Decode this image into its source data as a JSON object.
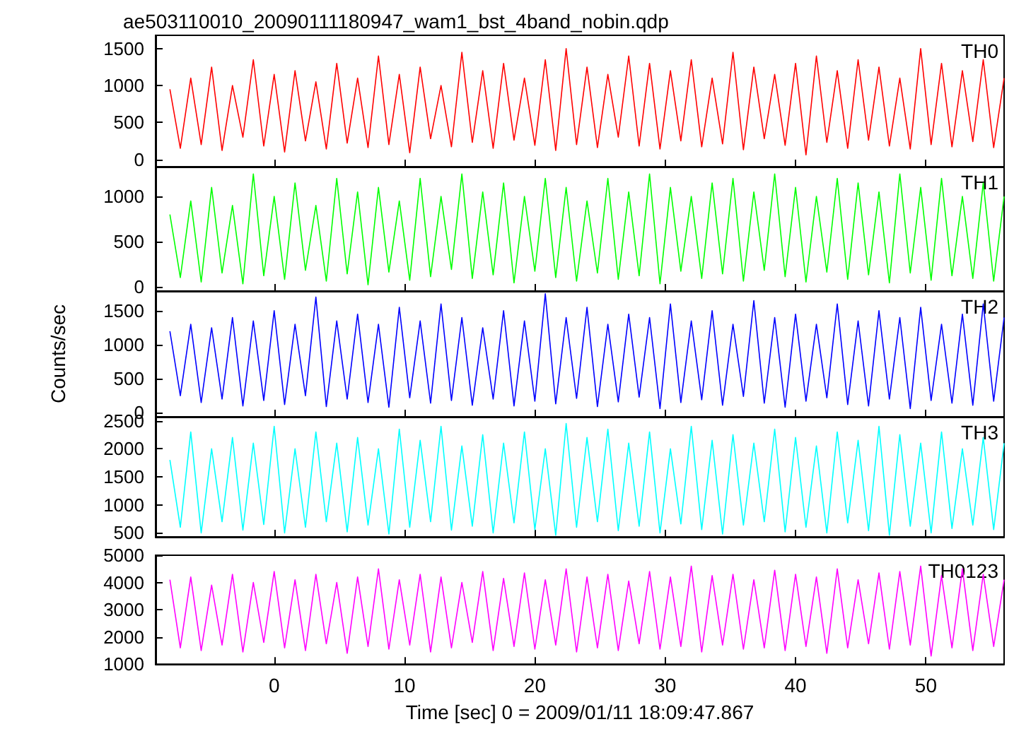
{
  "chart_data": [
    {
      "type": "line",
      "title": "ae503110010_20090111180947_wam1_bst_4band_nobin.qdp",
      "annotations": [
        "TH0"
      ],
      "tick_labels": "y",
      "grid": false,
      "marker": "none",
      "line_style": "solid",
      "x": [
        -8,
        -7.2,
        -6.4,
        -5.6,
        -4.8,
        -4,
        -3.2,
        -2.4,
        -1.6,
        -0.8,
        0,
        0.8,
        1.6,
        2.4,
        3.2,
        4,
        4.8,
        5.6,
        6.4,
        7.2,
        8,
        8.8,
        9.6,
        10.4,
        11.2,
        12,
        12.8,
        13.6,
        14.4,
        15.2,
        16,
        16.8,
        17.6,
        18.4,
        19.2,
        20,
        20.8,
        21.6,
        22.4,
        23.2,
        24,
        24.8,
        25.6,
        26.4,
        27.2,
        28,
        28.8,
        29.6,
        30.4,
        31.2,
        32,
        32.8,
        33.6,
        34.4,
        35.2,
        36,
        36.8,
        37.6,
        38.4,
        39.2,
        40,
        40.8,
        41.6,
        42.4,
        43.2,
        44,
        44.8,
        45.6,
        46.4,
        47.2,
        48,
        48.8,
        49.6,
        50.4,
        51.2,
        52,
        52.8,
        53.6,
        54.4,
        55.2,
        56
      ],
      "series": [
        {
          "color": "#ff0000",
          "values": [
            950,
            150,
            1100,
            200,
            1250,
            120,
            1000,
            300,
            1350,
            180,
            1150,
            100,
            1200,
            250,
            1050,
            140,
            1300,
            220,
            1100,
            160,
            1400,
            200,
            1150,
            90,
            1250,
            280,
            1000,
            170,
            1450,
            230,
            1200,
            150,
            1300,
            260,
            1100,
            190,
            1350,
            120,
            1500,
            200,
            1250,
            160,
            1150,
            300,
            1400,
            180,
            1300,
            140,
            1200,
            250,
            1350,
            170,
            1100,
            210,
            1450,
            130,
            1250,
            280,
            1150,
            190,
            1300,
            60,
            1400,
            230,
            1200,
            150,
            1350,
            260,
            1250,
            180,
            1100,
            140,
            1500,
            200,
            1300,
            170,
            1200,
            240,
            1350,
            160,
            1100
          ]
        }
      ],
      "xlim": [
        -9.1,
        56
      ],
      "xticks": [
        0,
        10,
        20,
        30,
        40,
        50
      ],
      "ylim": [
        -100,
        1680
      ],
      "yticks": [
        0,
        500,
        1000,
        1500
      ]
    },
    {
      "type": "line",
      "annotations": [
        "TH1"
      ],
      "tick_labels": "y",
      "grid": false,
      "marker": "none",
      "line_style": "solid",
      "x": [
        -8,
        -7.2,
        -6.4,
        -5.6,
        -4.8,
        -4,
        -3.2,
        -2.4,
        -1.6,
        -0.8,
        0,
        0.8,
        1.6,
        2.4,
        3.2,
        4,
        4.8,
        5.6,
        6.4,
        7.2,
        8,
        8.8,
        9.6,
        10.4,
        11.2,
        12,
        12.8,
        13.6,
        14.4,
        15.2,
        16,
        16.8,
        17.6,
        18.4,
        19.2,
        20,
        20.8,
        21.6,
        22.4,
        23.2,
        24,
        24.8,
        25.6,
        26.4,
        27.2,
        28,
        28.8,
        29.6,
        30.4,
        31.2,
        32,
        32.8,
        33.6,
        34.4,
        35.2,
        36,
        36.8,
        37.6,
        38.4,
        39.2,
        40,
        40.8,
        41.6,
        42.4,
        43.2,
        44,
        44.8,
        45.6,
        46.4,
        47.2,
        48,
        48.8,
        49.6,
        50.4,
        51.2,
        52,
        52.8,
        53.6,
        54.4,
        55.2,
        56
      ],
      "series": [
        {
          "color": "#00ff00",
          "values": [
            800,
            100,
            950,
            50,
            1100,
            150,
            900,
            30,
            1250,
            120,
            1000,
            80,
            1150,
            180,
            900,
            60,
            1200,
            140,
            1050,
            20,
            1100,
            160,
            950,
            70,
            1200,
            110,
            1000,
            190,
            1250,
            90,
            1050,
            130,
            1150,
            40,
            1000,
            170,
            1200,
            100,
            1100,
            60,
            950,
            150,
            1200,
            80,
            1050,
            120,
            1250,
            30,
            1100,
            170,
            1000,
            90,
            1150,
            140,
            1200,
            60,
            1050,
            180,
            1250,
            110,
            1100,
            50,
            1000,
            160,
            1200,
            80,
            1150,
            130,
            1050,
            40,
            1250,
            150,
            1100,
            70,
            1200,
            120,
            1000,
            90,
            1150,
            60,
            1000
          ]
        }
      ],
      "xlim": [
        -9.1,
        56
      ],
      "xticks": [
        0,
        10,
        20,
        30,
        40,
        50
      ],
      "ylim": [
        -50,
        1330
      ],
      "yticks": [
        0,
        500,
        1000
      ]
    },
    {
      "type": "line",
      "annotations": [
        "TH2"
      ],
      "ylabel": "Counts/sec",
      "tick_labels": "y",
      "grid": false,
      "marker": "none",
      "line_style": "solid",
      "x": [
        -8,
        -7.2,
        -6.4,
        -5.6,
        -4.8,
        -4,
        -3.2,
        -2.4,
        -1.6,
        -0.8,
        0,
        0.8,
        1.6,
        2.4,
        3.2,
        4,
        4.8,
        5.6,
        6.4,
        7.2,
        8,
        8.8,
        9.6,
        10.4,
        11.2,
        12,
        12.8,
        13.6,
        14.4,
        15.2,
        16,
        16.8,
        17.6,
        18.4,
        19.2,
        20,
        20.8,
        21.6,
        22.4,
        23.2,
        24,
        24.8,
        25.6,
        26.4,
        27.2,
        28,
        28.8,
        29.6,
        30.4,
        31.2,
        32,
        32.8,
        33.6,
        34.4,
        35.2,
        36,
        36.8,
        37.6,
        38.4,
        39.2,
        40,
        40.8,
        41.6,
        42.4,
        43.2,
        44,
        44.8,
        45.6,
        46.4,
        47.2,
        48,
        48.8,
        49.6,
        50.4,
        51.2,
        52,
        52.8,
        53.6,
        54.4,
        55.2,
        56
      ],
      "series": [
        {
          "color": "#0000ff",
          "values": [
            1200,
            250,
            1300,
            150,
            1250,
            200,
            1400,
            100,
            1350,
            180,
            1500,
            120,
            1300,
            250,
            1700,
            90,
            1350,
            200,
            1450,
            150,
            1300,
            80,
            1550,
            220,
            1350,
            140,
            1600,
            180,
            1400,
            110,
            1250,
            200,
            1500,
            100,
            1350,
            170,
            1750,
            130,
            1400,
            210,
            1550,
            90,
            1300,
            160,
            1450,
            230,
            1400,
            60,
            1600,
            150,
            1350,
            190,
            1500,
            110,
            1300,
            240,
            1650,
            140,
            1400,
            80,
            1450,
            170,
            1300,
            220,
            1600,
            120,
            1350,
            100,
            1500,
            200,
            1400,
            60,
            1550,
            180,
            1300,
            140,
            1450,
            110,
            1600,
            170,
            1400
          ]
        }
      ],
      "xlim": [
        -9.1,
        56
      ],
      "xticks": [
        0,
        10,
        20,
        30,
        40,
        50
      ],
      "ylim": [
        -60,
        1790
      ],
      "yticks": [
        0,
        500,
        1000,
        1500
      ]
    },
    {
      "type": "line",
      "annotations": [
        "TH3"
      ],
      "tick_labels": "y",
      "grid": false,
      "marker": "none",
      "line_style": "solid",
      "x": [
        -8,
        -7.2,
        -6.4,
        -5.6,
        -4.8,
        -4,
        -3.2,
        -2.4,
        -1.6,
        -0.8,
        0,
        0.8,
        1.6,
        2.4,
        3.2,
        4,
        4.8,
        5.6,
        6.4,
        7.2,
        8,
        8.8,
        9.6,
        10.4,
        11.2,
        12,
        12.8,
        13.6,
        14.4,
        15.2,
        16,
        16.8,
        17.6,
        18.4,
        19.2,
        20,
        20.8,
        21.6,
        22.4,
        23.2,
        24,
        24.8,
        25.6,
        26.4,
        27.2,
        28,
        28.8,
        29.6,
        30.4,
        31.2,
        32,
        32.8,
        33.6,
        34.4,
        35.2,
        36,
        36.8,
        37.6,
        38.4,
        39.2,
        40,
        40.8,
        41.6,
        42.4,
        43.2,
        44,
        44.8,
        45.6,
        46.4,
        47.2,
        48,
        48.8,
        49.6,
        50.4,
        51.2,
        52,
        52.8,
        53.6,
        54.4,
        55.2,
        56
      ],
      "series": [
        {
          "color": "#00ffff",
          "values": [
            1800,
            600,
            2300,
            500,
            2000,
            700,
            2200,
            550,
            2100,
            650,
            2400,
            500,
            2000,
            600,
            2300,
            700,
            2100,
            520,
            2200,
            640,
            2000,
            480,
            2350,
            600,
            2150,
            700,
            2400,
            550,
            2050,
            620,
            2250,
            500,
            2100,
            680,
            2300,
            560,
            2000,
            460,
            2450,
            600,
            2200,
            700,
            2350,
            540,
            2100,
            620,
            2300,
            500,
            2000,
            660,
            2400,
            560,
            2150,
            480,
            2250,
            640,
            2100,
            700,
            2350,
            520,
            2200,
            600,
            2050,
            500,
            2300,
            680,
            2150,
            540,
            2400,
            460,
            2250,
            620,
            2100,
            500,
            2300,
            580,
            2000,
            640,
            2200,
            560,
            2100
          ]
        }
      ],
      "xlim": [
        -9.1,
        56
      ],
      "xticks": [
        0,
        10,
        20,
        30,
        40,
        50
      ],
      "ylim": [
        430,
        2570
      ],
      "yticks": [
        500,
        1000,
        1500,
        2000,
        2500
      ]
    },
    {
      "type": "line",
      "annotations": [
        "TH0123"
      ],
      "xlabel": "Time [sec] 0 = 2009/01/11 18:09:47.867",
      "grid": false,
      "marker": "none",
      "line_style": "solid",
      "x": [
        -8,
        -7.2,
        -6.4,
        -5.6,
        -4.8,
        -4,
        -3.2,
        -2.4,
        -1.6,
        -0.8,
        0,
        0.8,
        1.6,
        2.4,
        3.2,
        4,
        4.8,
        5.6,
        6.4,
        7.2,
        8,
        8.8,
        9.6,
        10.4,
        11.2,
        12,
        12.8,
        13.6,
        14.4,
        15.2,
        16,
        16.8,
        17.6,
        18.4,
        19.2,
        20,
        20.8,
        21.6,
        22.4,
        23.2,
        24,
        24.8,
        25.6,
        26.4,
        27.2,
        28,
        28.8,
        29.6,
        30.4,
        31.2,
        32,
        32.8,
        33.6,
        34.4,
        35.2,
        36,
        36.8,
        37.6,
        38.4,
        39.2,
        40,
        40.8,
        41.6,
        42.4,
        43.2,
        44,
        44.8,
        45.6,
        46.4,
        47.2,
        48,
        48.8,
        49.6,
        50.4,
        51.2,
        52,
        52.8,
        53.6,
        54.4,
        55.2,
        56
      ],
      "series": [
        {
          "color": "#ff00ff",
          "values": [
            4100,
            1600,
            4200,
            1500,
            3900,
            1700,
            4300,
            1450,
            4000,
            1800,
            4400,
            1600,
            4100,
            1500,
            4300,
            1750,
            4000,
            1400,
            4200,
            1650,
            4500,
            1550,
            4100,
            1700,
            4300,
            1450,
            4200,
            1600,
            4000,
            1800,
            4400,
            1500,
            4150,
            1650,
            4350,
            1550,
            4100,
            1700,
            4500,
            1450,
            4200,
            1600,
            4300,
            1500,
            4050,
            1750,
            4400,
            1550,
            4200,
            1650,
            4600,
            1450,
            4250,
            1700,
            4300,
            1550,
            4100,
            1600,
            4450,
            1500,
            4300,
            1650,
            4200,
            1400,
            4500,
            1600,
            4100,
            1750,
            4350,
            1550,
            4400,
            1700,
            4600,
            1300,
            4250,
            1600,
            4500,
            1500,
            4300,
            1650,
            4100
          ]
        }
      ],
      "xlim": [
        -9.1,
        56
      ],
      "xticks": [
        0,
        10,
        20,
        30,
        40,
        50
      ],
      "ylim": [
        1000,
        5000
      ],
      "yticks": [
        1000,
        2000,
        3000,
        4000,
        5000
      ]
    }
  ]
}
